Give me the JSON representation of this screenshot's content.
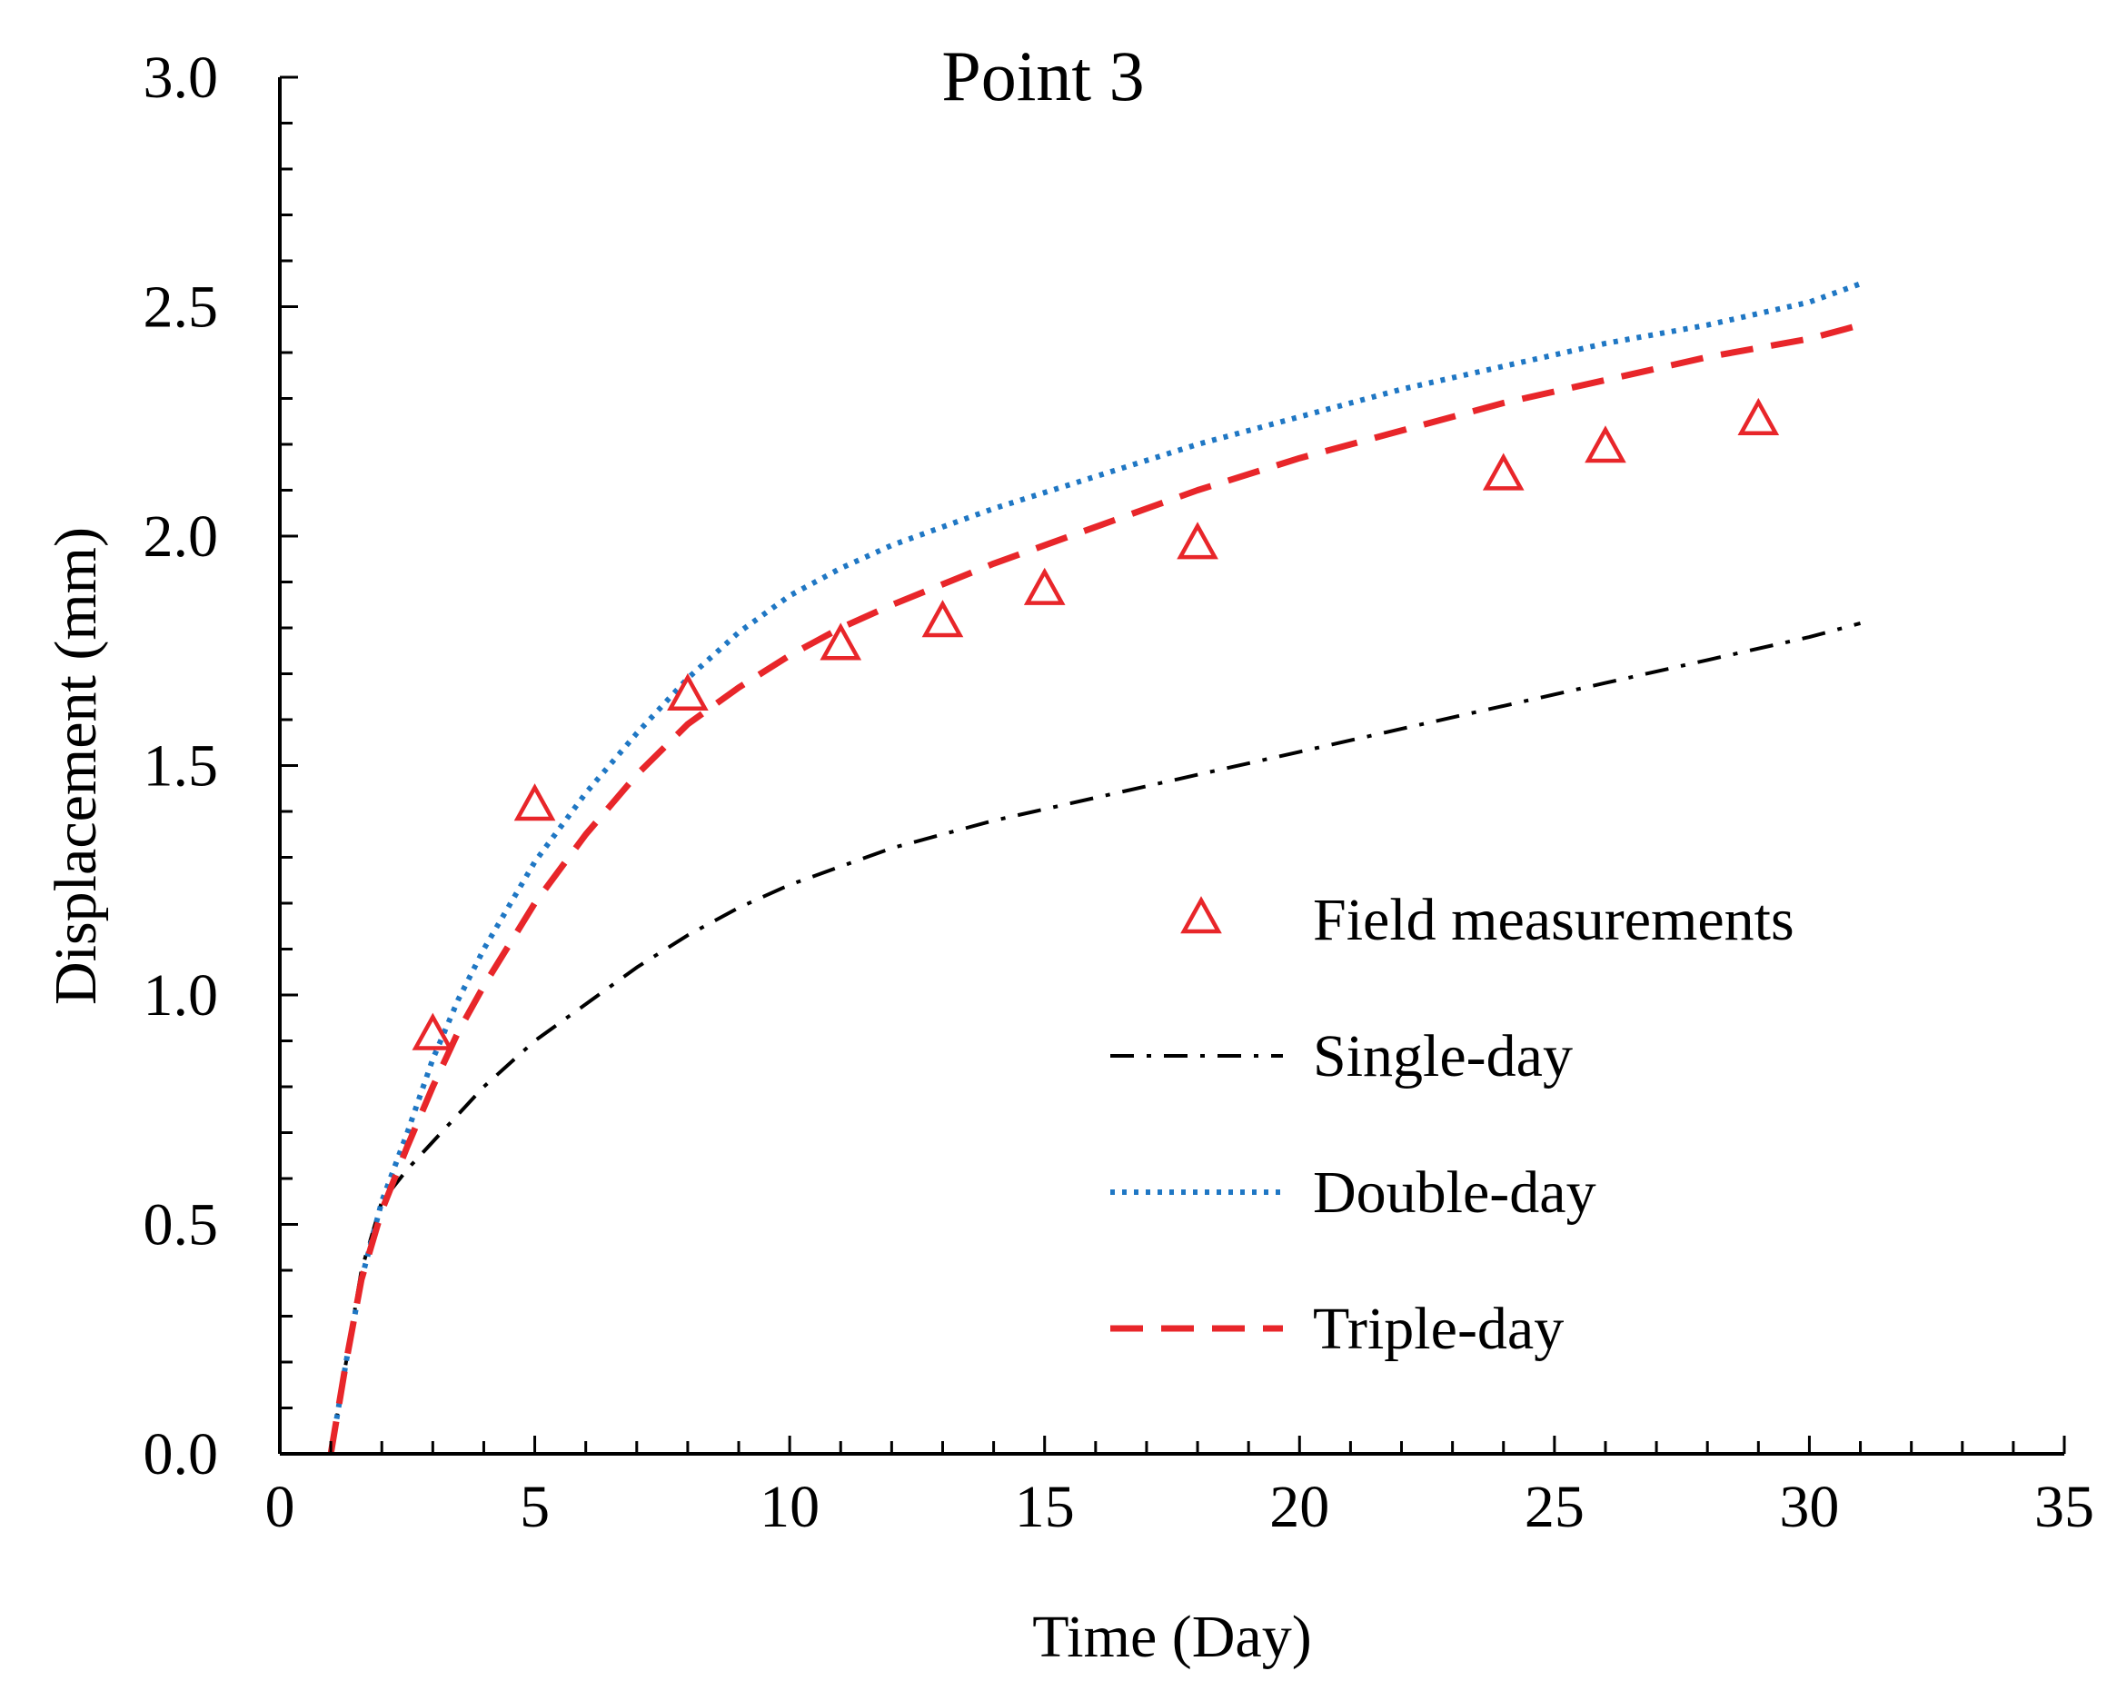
{
  "chart_data": {
    "type": "line",
    "title": "Point 3",
    "xlabel": "Time (Day)",
    "ylabel": "Displacement (mm)",
    "xlim": [
      0,
      35
    ],
    "ylim": [
      0,
      3.0
    ],
    "x_ticks": [
      0,
      5,
      10,
      15,
      20,
      25,
      30,
      35
    ],
    "x_tick_labels": [
      "0",
      "5",
      "10",
      "15",
      "20",
      "25",
      "30",
      "35"
    ],
    "y_ticks": [
      0,
      0.5,
      1.0,
      1.5,
      2.0,
      2.5,
      3.0
    ],
    "y_tick_labels": [
      "0.0",
      "0.5",
      "1.0",
      "1.5",
      "2.0",
      "2.5",
      "3.0"
    ],
    "grid": false,
    "legend_position": "lower-right",
    "series": [
      {
        "name": "Field measurements",
        "kind": "scatter",
        "marker": "triangle-open",
        "color": "#e8262a",
        "x": [
          3,
          5,
          8,
          11,
          13,
          15,
          18,
          24,
          26,
          29
        ],
        "y": [
          0.91,
          1.41,
          1.65,
          1.76,
          1.81,
          1.88,
          1.98,
          2.13,
          2.19,
          2.25
        ]
      },
      {
        "name": "Single-day",
        "kind": "line",
        "dash": "dash-dot",
        "color": "#000000",
        "x": [
          1.0,
          1.3,
          1.6,
          2.0,
          2.5,
          3.0,
          4.0,
          5.0,
          6.0,
          7.0,
          8.0,
          9.0,
          10.0,
          12.0,
          14.0,
          16.0,
          18.0,
          20.0,
          22.0,
          24.0,
          26.0,
          28.0,
          30.0,
          31.0
        ],
        "y": [
          0.0,
          0.2,
          0.4,
          0.55,
          0.62,
          0.68,
          0.8,
          0.9,
          0.98,
          1.06,
          1.13,
          1.19,
          1.24,
          1.32,
          1.38,
          1.43,
          1.48,
          1.53,
          1.58,
          1.63,
          1.68,
          1.73,
          1.78,
          1.81
        ]
      },
      {
        "name": "Double-day",
        "kind": "line",
        "dash": "dotted",
        "color": "#1f77c4",
        "x": [
          1.0,
          1.3,
          1.6,
          2.0,
          2.5,
          3.0,
          3.5,
          4.0,
          5.0,
          6.0,
          7.0,
          8.0,
          9.0,
          10.0,
          11.0,
          12.0,
          14.0,
          16.0,
          18.0,
          20.0,
          22.0,
          24.0,
          26.0,
          28.0,
          30.0,
          31.0
        ],
        "y": [
          0.0,
          0.2,
          0.38,
          0.55,
          0.7,
          0.86,
          0.99,
          1.1,
          1.29,
          1.44,
          1.57,
          1.69,
          1.79,
          1.87,
          1.93,
          1.98,
          2.06,
          2.13,
          2.2,
          2.26,
          2.32,
          2.37,
          2.42,
          2.46,
          2.51,
          2.55
        ]
      },
      {
        "name": "Triple-day",
        "kind": "line",
        "dash": "dashed",
        "color": "#e8262a",
        "x": [
          1.0,
          1.3,
          1.6,
          2.0,
          2.5,
          3.0,
          3.5,
          4.0,
          5.0,
          6.0,
          7.0,
          8.0,
          9.0,
          10.0,
          11.0,
          12.0,
          14.0,
          16.0,
          18.0,
          20.0,
          22.0,
          24.0,
          26.0,
          28.0,
          30.0,
          31.0
        ],
        "y": [
          0.0,
          0.2,
          0.38,
          0.53,
          0.67,
          0.8,
          0.92,
          1.02,
          1.2,
          1.35,
          1.48,
          1.59,
          1.67,
          1.74,
          1.8,
          1.85,
          1.94,
          2.02,
          2.1,
          2.17,
          2.23,
          2.29,
          2.34,
          2.39,
          2.43,
          2.46
        ]
      }
    ]
  }
}
